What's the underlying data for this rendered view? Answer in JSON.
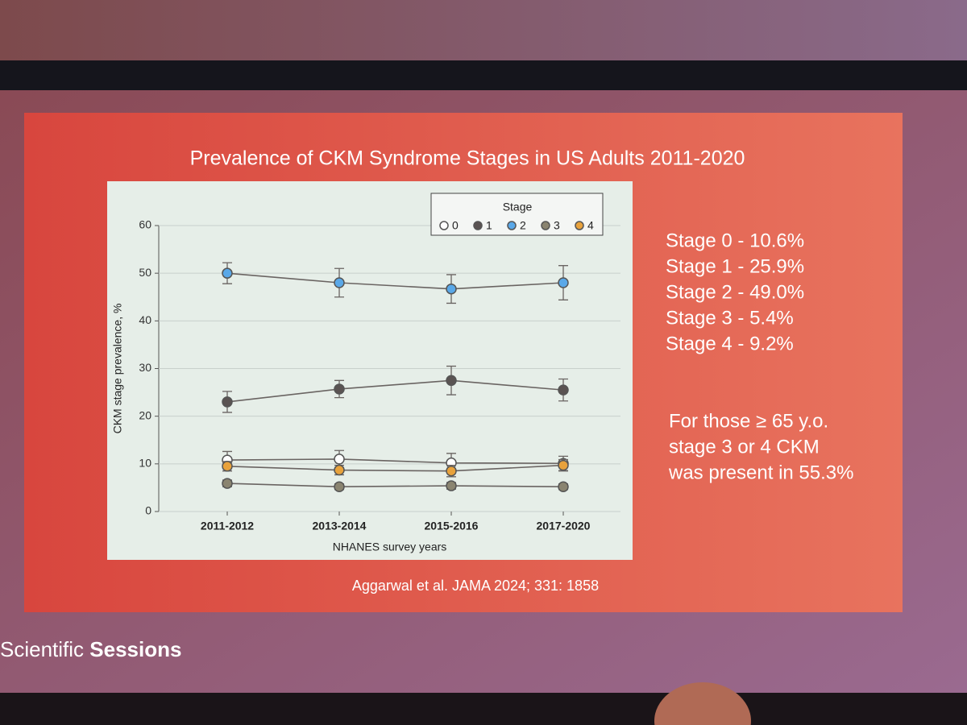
{
  "chart_data": {
    "type": "line",
    "title": "Prevalence of CKM Syndrome Stages in US Adults 2011-2020",
    "x_label": "NHANES survey years",
    "y_label": "CKM stage prevalence, %",
    "legend_title": "Stage",
    "legend_position": "top-right",
    "grid": true,
    "categories": [
      "2011-2012",
      "2013-2014",
      "2015-2016",
      "2017-2020"
    ],
    "ylim": [
      0,
      60
    ],
    "yticks": [
      0,
      10,
      20,
      30,
      40,
      50,
      60
    ],
    "series": [
      {
        "name": "0",
        "color": "#ffffff",
        "values": [
          10.8,
          11.0,
          10.2,
          10.1
        ],
        "errors": [
          1.8,
          1.8,
          2.0,
          1.5
        ]
      },
      {
        "name": "1",
        "color": "#5a5352",
        "values": [
          23.0,
          25.7,
          27.5,
          25.5
        ],
        "errors": [
          2.2,
          1.8,
          3.0,
          2.3
        ]
      },
      {
        "name": "2",
        "color": "#5aa8e8",
        "values": [
          50.0,
          48.0,
          46.7,
          48.0
        ],
        "errors": [
          2.2,
          3.0,
          3.0,
          3.6
        ]
      },
      {
        "name": "3",
        "color": "#8a8470",
        "values": [
          5.9,
          5.2,
          5.4,
          5.2
        ],
        "errors": [
          0.7,
          0.6,
          0.7,
          0.6
        ]
      },
      {
        "name": "4",
        "color": "#e8a23c",
        "values": [
          9.5,
          8.7,
          8.5,
          9.7
        ],
        "errors": [
          1.0,
          1.0,
          1.2,
          1.2
        ]
      }
    ]
  },
  "summary": {
    "stages": [
      "Stage 0 - 10.6%",
      "Stage 1 -  25.9%",
      "Stage 2 -  49.0%",
      "Stage 3 -  5.4%",
      "Stage 4 -  9.2%"
    ],
    "note": [
      "For those ≥ 65 y.o.",
      "stage 3 or 4 CKM",
      "was present in 55.3%"
    ],
    "citation": "Aggarwal et al. JAMA 2024; 331: 1858"
  },
  "footer": [
    "Scientific",
    "Sessions"
  ]
}
